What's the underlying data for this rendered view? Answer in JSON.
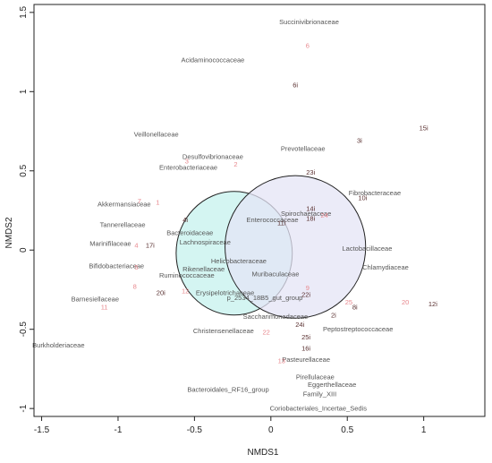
{
  "chart_data": {
    "type": "scatter",
    "xlabel": "NMDS1",
    "ylabel": "NMDS2",
    "xlim": [
      -1.55,
      1.4
    ],
    "ylim": [
      -1.05,
      1.55
    ],
    "xticks": [
      {
        "value": -1.5,
        "label": "-1.5"
      },
      {
        "value": -1.0,
        "label": "-1"
      },
      {
        "value": -0.5,
        "label": "-0.5"
      },
      {
        "value": 0,
        "label": "0"
      },
      {
        "value": 0.5,
        "label": "0.5"
      },
      {
        "value": 1.0,
        "label": "1"
      }
    ],
    "yticks": [
      {
        "value": -1.0,
        "label": "-1"
      },
      {
        "value": -0.5,
        "label": "-0.5"
      },
      {
        "value": 0,
        "label": "0"
      },
      {
        "value": 0.5,
        "label": "0.5"
      },
      {
        "value": 1.0,
        "label": "1"
      },
      {
        "value": 1.5,
        "label": "1.5"
      }
    ],
    "ellipses": [
      {
        "cx": -0.24,
        "cy": -0.02,
        "rx": 0.38,
        "ry": 0.39,
        "fill": "#c6f2ee",
        "stroke": "#222222"
      },
      {
        "cx": 0.16,
        "cy": 0.02,
        "rx": 0.46,
        "ry": 0.45,
        "fill": "#e4e4f6",
        "stroke": "#222222"
      }
    ],
    "families": [
      {
        "label": "Succinivibrionaceae",
        "x": 0.25,
        "y": 1.44
      },
      {
        "label": "Acidaminococcaceae",
        "x": -0.38,
        "y": 1.2
      },
      {
        "label": "Veillonellaceae",
        "x": -0.75,
        "y": 0.73
      },
      {
        "label": "Prevotellaceae",
        "x": 0.21,
        "y": 0.64
      },
      {
        "label": "Desulfovibrionaceae",
        "x": -0.38,
        "y": 0.59
      },
      {
        "label": "Enterobacteriaceae",
        "x": -0.54,
        "y": 0.52
      },
      {
        "label": "Akkermansiaceae",
        "x": -0.96,
        "y": 0.29
      },
      {
        "label": "Fibrobacteraceae",
        "x": 0.68,
        "y": 0.36
      },
      {
        "label": "Spirochaetaceae",
        "x": 0.23,
        "y": 0.23
      },
      {
        "label": "Enterococcaceae",
        "x": 0.01,
        "y": 0.19
      },
      {
        "label": "Tannerellaceae",
        "x": -0.97,
        "y": 0.16
      },
      {
        "label": "Bacteroidaceae",
        "x": -0.53,
        "y": 0.11
      },
      {
        "label": "Lachnospiraceae",
        "x": -0.43,
        "y": 0.05
      },
      {
        "label": "Marinifilaceae",
        "x": -1.05,
        "y": 0.04
      },
      {
        "label": "Lactobacillaceae",
        "x": 0.63,
        "y": 0.01
      },
      {
        "label": "Helicobacteraceae",
        "x": -0.21,
        "y": -0.07
      },
      {
        "label": "Bifidobacteriaceae",
        "x": -1.01,
        "y": -0.1
      },
      {
        "label": "Chlamydiaceae",
        "x": 0.75,
        "y": -0.11
      },
      {
        "label": "Rikenellaceae",
        "x": -0.44,
        "y": -0.12
      },
      {
        "label": "Muribaculaceae",
        "x": 0.03,
        "y": -0.15
      },
      {
        "label": "Ruminococcaceae",
        "x": -0.55,
        "y": -0.16
      },
      {
        "label": "Erysipelotrichaceae",
        "x": -0.3,
        "y": -0.27
      },
      {
        "label": "p_2534_18B5_gut_group",
        "x": -0.04,
        "y": -0.3
      },
      {
        "label": "Barnesiellaceae",
        "x": -1.15,
        "y": -0.31
      },
      {
        "label": "Saccharimonadaceae",
        "x": 0.03,
        "y": -0.42
      },
      {
        "label": "Peptostreptococcaceae",
        "x": 0.57,
        "y": -0.5
      },
      {
        "label": "Christensenellaceae",
        "x": -0.31,
        "y": -0.51
      },
      {
        "label": "Burkholderiaceae",
        "x": -1.39,
        "y": -0.6
      },
      {
        "label": "Pasteurellaceae",
        "x": 0.23,
        "y": -0.69
      },
      {
        "label": "Pirellulaceae",
        "x": 0.29,
        "y": -0.8
      },
      {
        "label": "Eggerthellaceae",
        "x": 0.4,
        "y": -0.85
      },
      {
        "label": "Bacteroidales_RF16_group",
        "x": -0.28,
        "y": -0.88
      },
      {
        "label": "Family_XIII",
        "x": 0.32,
        "y": -0.91
      },
      {
        "label": "Coriobacteriales_Incertae_Sedis",
        "x": 0.31,
        "y": -1.0
      }
    ],
    "samples": [
      {
        "label": "6",
        "x": 0.24,
        "y": 1.29,
        "color": "#e8888e"
      },
      {
        "label": "6i",
        "x": 0.16,
        "y": 1.04,
        "color": "#5a3030"
      },
      {
        "label": "15i",
        "x": 1.0,
        "y": 0.77,
        "color": "#5a3030"
      },
      {
        "label": "3i",
        "x": 0.58,
        "y": 0.69,
        "color": "#5a3030"
      },
      {
        "label": "3",
        "x": -0.55,
        "y": 0.56,
        "color": "#e8888e"
      },
      {
        "label": "2",
        "x": -0.23,
        "y": 0.54,
        "color": "#e8888e"
      },
      {
        "label": "23i",
        "x": 0.26,
        "y": 0.49,
        "color": "#5a3030"
      },
      {
        "label": "10i",
        "x": 0.6,
        "y": 0.33,
        "color": "#5a3030"
      },
      {
        "label": "7",
        "x": -0.86,
        "y": 0.31,
        "color": "#e8888e"
      },
      {
        "label": "1",
        "x": -0.74,
        "y": 0.3,
        "color": "#e8888e"
      },
      {
        "label": "14i",
        "x": 0.26,
        "y": 0.26,
        "color": "#5a3030"
      },
      {
        "label": "18i",
        "x": 0.26,
        "y": 0.2,
        "color": "#5a3030"
      },
      {
        "label": "24",
        "x": 0.35,
        "y": 0.22,
        "color": "#e8888e"
      },
      {
        "label": "4i",
        "x": -0.56,
        "y": 0.19,
        "color": "#5a3030"
      },
      {
        "label": "11i",
        "x": 0.07,
        "y": 0.17,
        "color": "#5a3030"
      },
      {
        "label": "4",
        "x": -0.88,
        "y": 0.03,
        "color": "#e8888e"
      },
      {
        "label": "17i",
        "x": -0.79,
        "y": 0.03,
        "color": "#5a3030"
      },
      {
        "label": "5",
        "x": -0.88,
        "y": -0.11,
        "color": "#e8888e"
      },
      {
        "label": "8",
        "x": -0.89,
        "y": -0.23,
        "color": "#e8888e"
      },
      {
        "label": "20i",
        "x": -0.72,
        "y": -0.27,
        "color": "#5a3030"
      },
      {
        "label": "12",
        "x": -0.56,
        "y": -0.26,
        "color": "#e8888e"
      },
      {
        "label": "9",
        "x": 0.24,
        "y": -0.24,
        "color": "#e8888e"
      },
      {
        "label": "22i",
        "x": 0.23,
        "y": -0.28,
        "color": "#5a3030"
      },
      {
        "label": "25",
        "x": 0.51,
        "y": -0.33,
        "color": "#e8888e"
      },
      {
        "label": "8i",
        "x": 0.55,
        "y": -0.36,
        "color": "#5a3030"
      },
      {
        "label": "20",
        "x": 0.88,
        "y": -0.33,
        "color": "#e8888e"
      },
      {
        "label": "12i",
        "x": 1.06,
        "y": -0.34,
        "color": "#5a3030"
      },
      {
        "label": "11",
        "x": -1.09,
        "y": -0.36,
        "color": "#e8888e"
      },
      {
        "label": "2i",
        "x": 0.41,
        "y": -0.41,
        "color": "#5a3030"
      },
      {
        "label": "24i",
        "x": 0.19,
        "y": -0.47,
        "color": "#5a3030"
      },
      {
        "label": "22",
        "x": -0.03,
        "y": -0.52,
        "color": "#e8888e"
      },
      {
        "label": "25i",
        "x": 0.23,
        "y": -0.55,
        "color": "#5a3030"
      },
      {
        "label": "16i",
        "x": 0.23,
        "y": -0.62,
        "color": "#5a3030"
      },
      {
        "label": "13",
        "x": 0.07,
        "y": -0.7,
        "color": "#e8888e"
      }
    ]
  }
}
